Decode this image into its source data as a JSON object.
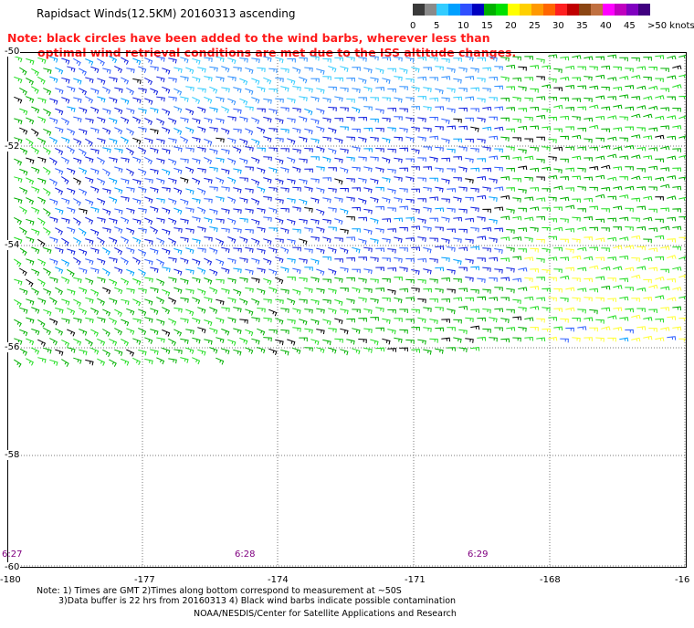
{
  "title": "Rapidsact Winds(12.5KM) 20160313 ascending",
  "note": {
    "line1": "Note: black circles have been added to the wind barbs, wherever less than",
    "line2": "optimal wind retrieval conditions are met due to the ISS altitude changes."
  },
  "legend": {
    "cells": [
      {
        "color": "#3a3a3a"
      },
      {
        "color": "#8a8a8a"
      },
      {
        "color": "#33ccff"
      },
      {
        "color": "#00a0ff"
      },
      {
        "color": "#3050ff"
      },
      {
        "color": "#0000c0"
      },
      {
        "color": "#00b000"
      },
      {
        "color": "#00e000"
      },
      {
        "color": "#ffff00"
      },
      {
        "color": "#ffd000"
      },
      {
        "color": "#ff9900"
      },
      {
        "color": "#ff6600"
      },
      {
        "color": "#ff2020"
      },
      {
        "color": "#c00000"
      },
      {
        "color": "#8b4513"
      },
      {
        "color": "#c07040"
      },
      {
        "color": "#ff00ff"
      },
      {
        "color": "#c000c0"
      },
      {
        "color": "#8000c0"
      },
      {
        "color": "#400080"
      }
    ],
    "labels": [
      "0",
      "5",
      "10",
      "15",
      "20",
      "25",
      "30",
      "35",
      "40",
      "45",
      ">50 knots"
    ]
  },
  "map": {
    "lat_labels": [
      "-50",
      "-52",
      "-54",
      "-56",
      "-58",
      "-60"
    ],
    "lon_labels": [
      "-180",
      "-177",
      "-174",
      "-171",
      "-168",
      "-16"
    ],
    "time_labels": [
      "6:27",
      "6:28",
      "6:29"
    ],
    "wind_speed_units": "knots",
    "swath": {
      "lat_range": [
        -56.3,
        -50
      ],
      "speed_regions": [
        "10-15 knots dominant in center",
        "15-20 knots along edges",
        "20-25 knots in southeast corner"
      ]
    }
  },
  "footer": {
    "notes_line1": "Note: 1) Times are GMT 2)Times along bottom correspond to measurement at ~50S",
    "notes_line2": "3)Data buffer is 22 hrs from 20160313 4) Black wind barbs indicate possible contamination",
    "credit": "NOAA/NESDIS/Center for Satellite Applications and Research"
  }
}
